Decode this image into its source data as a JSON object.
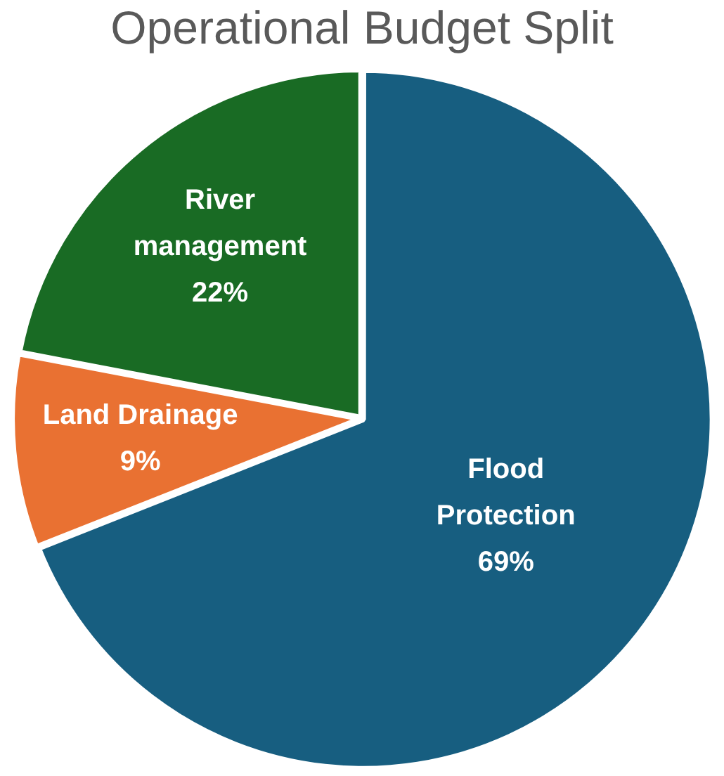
{
  "chart_data": {
    "type": "pie",
    "title": "Operational Budget Split",
    "categories": [
      "Flood Protection",
      "Land Drainage",
      "River management"
    ],
    "values": [
      69,
      9,
      22
    ],
    "colors": [
      "#175e80",
      "#e97132",
      "#196b24"
    ],
    "value_labels": [
      "69%",
      "9%",
      "22%"
    ],
    "legend": false
  }
}
